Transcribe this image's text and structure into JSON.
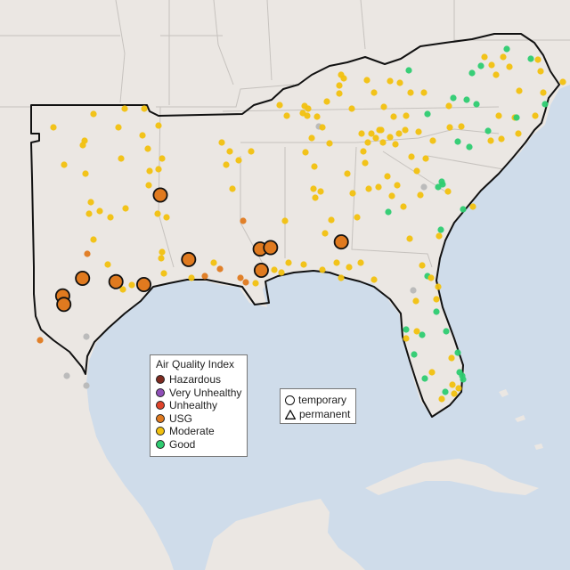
{
  "legend": {
    "title": "Air Quality Index",
    "categories": [
      {
        "label": "Hazardous",
        "color": "#7e2a1f"
      },
      {
        "label": "Very Unhealthy",
        "color": "#8f4fb8"
      },
      {
        "label": "Unhealthy",
        "color": "#e0432a"
      },
      {
        "label": "USG",
        "color": "#e07a1f"
      },
      {
        "label": "Moderate",
        "color": "#f2c10f"
      },
      {
        "label": "Good",
        "color": "#2ecc71"
      }
    ]
  },
  "shape_legend": [
    {
      "label": "temporary",
      "shape": "circle"
    },
    {
      "label": "permanent",
      "shape": "triangle"
    }
  ],
  "colors": {
    "land": "#ebe7e3",
    "water": "#cfdcea",
    "unknown_station": "#b8b8b8",
    "region_outline": "#111111"
  },
  "large_usg_sites": [
    {
      "lon": -95.27,
      "lat": 32.35
    },
    {
      "lon": -98.48,
      "lat": 29.42
    },
    {
      "lon": -99.3,
      "lat": 28.8
    },
    {
      "lon": -99.25,
      "lat": 28.5
    },
    {
      "lon": -97.1,
      "lat": 29.3
    },
    {
      "lon": -95.95,
      "lat": 29.2
    },
    {
      "lon": -94.1,
      "lat": 30.08
    },
    {
      "lon": -91.15,
      "lat": 30.45
    },
    {
      "lon": -90.72,
      "lat": 30.5
    },
    {
      "lon": -91.1,
      "lat": 29.7
    },
    {
      "lon": -87.8,
      "lat": 30.7
    }
  ]
}
